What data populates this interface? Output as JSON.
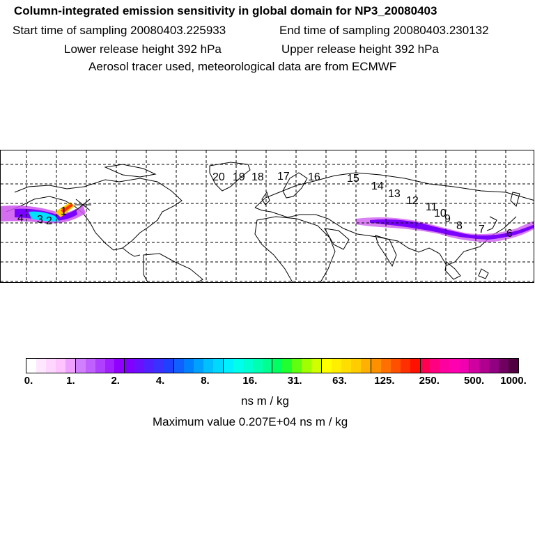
{
  "header": {
    "title": "Column-integrated emission sensitivity in global domain for NP3_20080403",
    "start_sampling": "Start time of sampling 20080403.225933",
    "end_sampling": "End time of sampling 20080403.230132",
    "lower_release": "Lower release height  392 hPa",
    "upper_release": "Upper release height  392 hPa",
    "tracer_info": "Aerosol tracer used, meteorological data are from ECMWF"
  },
  "map": {
    "projection": "global lat-lon",
    "track_labels": [
      "20",
      "19",
      "18",
      "17",
      "16",
      "15",
      "14",
      "13",
      "12",
      "11",
      "10",
      "9",
      "8",
      "7",
      "6",
      "4",
      "3",
      "2",
      "1"
    ],
    "plume_colors": {
      "low": "#cc55ee",
      "mid": "#7a00ff",
      "high": "#00e0ff",
      "peak": "#ff3300"
    }
  },
  "colorbar": {
    "ticks": [
      "0.",
      "1.",
      "2.",
      "4.",
      "8.",
      "16.",
      "31.",
      "63.",
      "125.",
      "250.",
      "500.",
      "1000."
    ],
    "colors": [
      "#ffffff",
      "#ffe8ff",
      "#ffd6ff",
      "#ffc4ff",
      "#f0a0ff",
      "#d080ff",
      "#c060ff",
      "#b040ff",
      "#a020ff",
      "#9000ff",
      "#8000ff",
      "#6a10ff",
      "#5020ff",
      "#3a30ff",
      "#2040ff",
      "#1060ff",
      "#0080ff",
      "#00a0ff",
      "#00c0ff",
      "#00d8ff",
      "#00f0ff",
      "#00ffea",
      "#00ffd0",
      "#00ffb0",
      "#00ff90",
      "#00ff60",
      "#20ff30",
      "#60ff10",
      "#a0ff00",
      "#d0ff00",
      "#ffff00",
      "#ffee00",
      "#ffdd00",
      "#ffcc00",
      "#ffb000",
      "#ff9000",
      "#ff7000",
      "#ff5000",
      "#ff3000",
      "#ff1000",
      "#ff0050",
      "#ff0080",
      "#ff00a0",
      "#ff00b0",
      "#f000b0",
      "#d000a0",
      "#b00090",
      "#900080",
      "#700060",
      "#500040"
    ],
    "unit": "ns m / kg",
    "maximum": "Maximum value  0.207E+04 ns m / kg"
  }
}
